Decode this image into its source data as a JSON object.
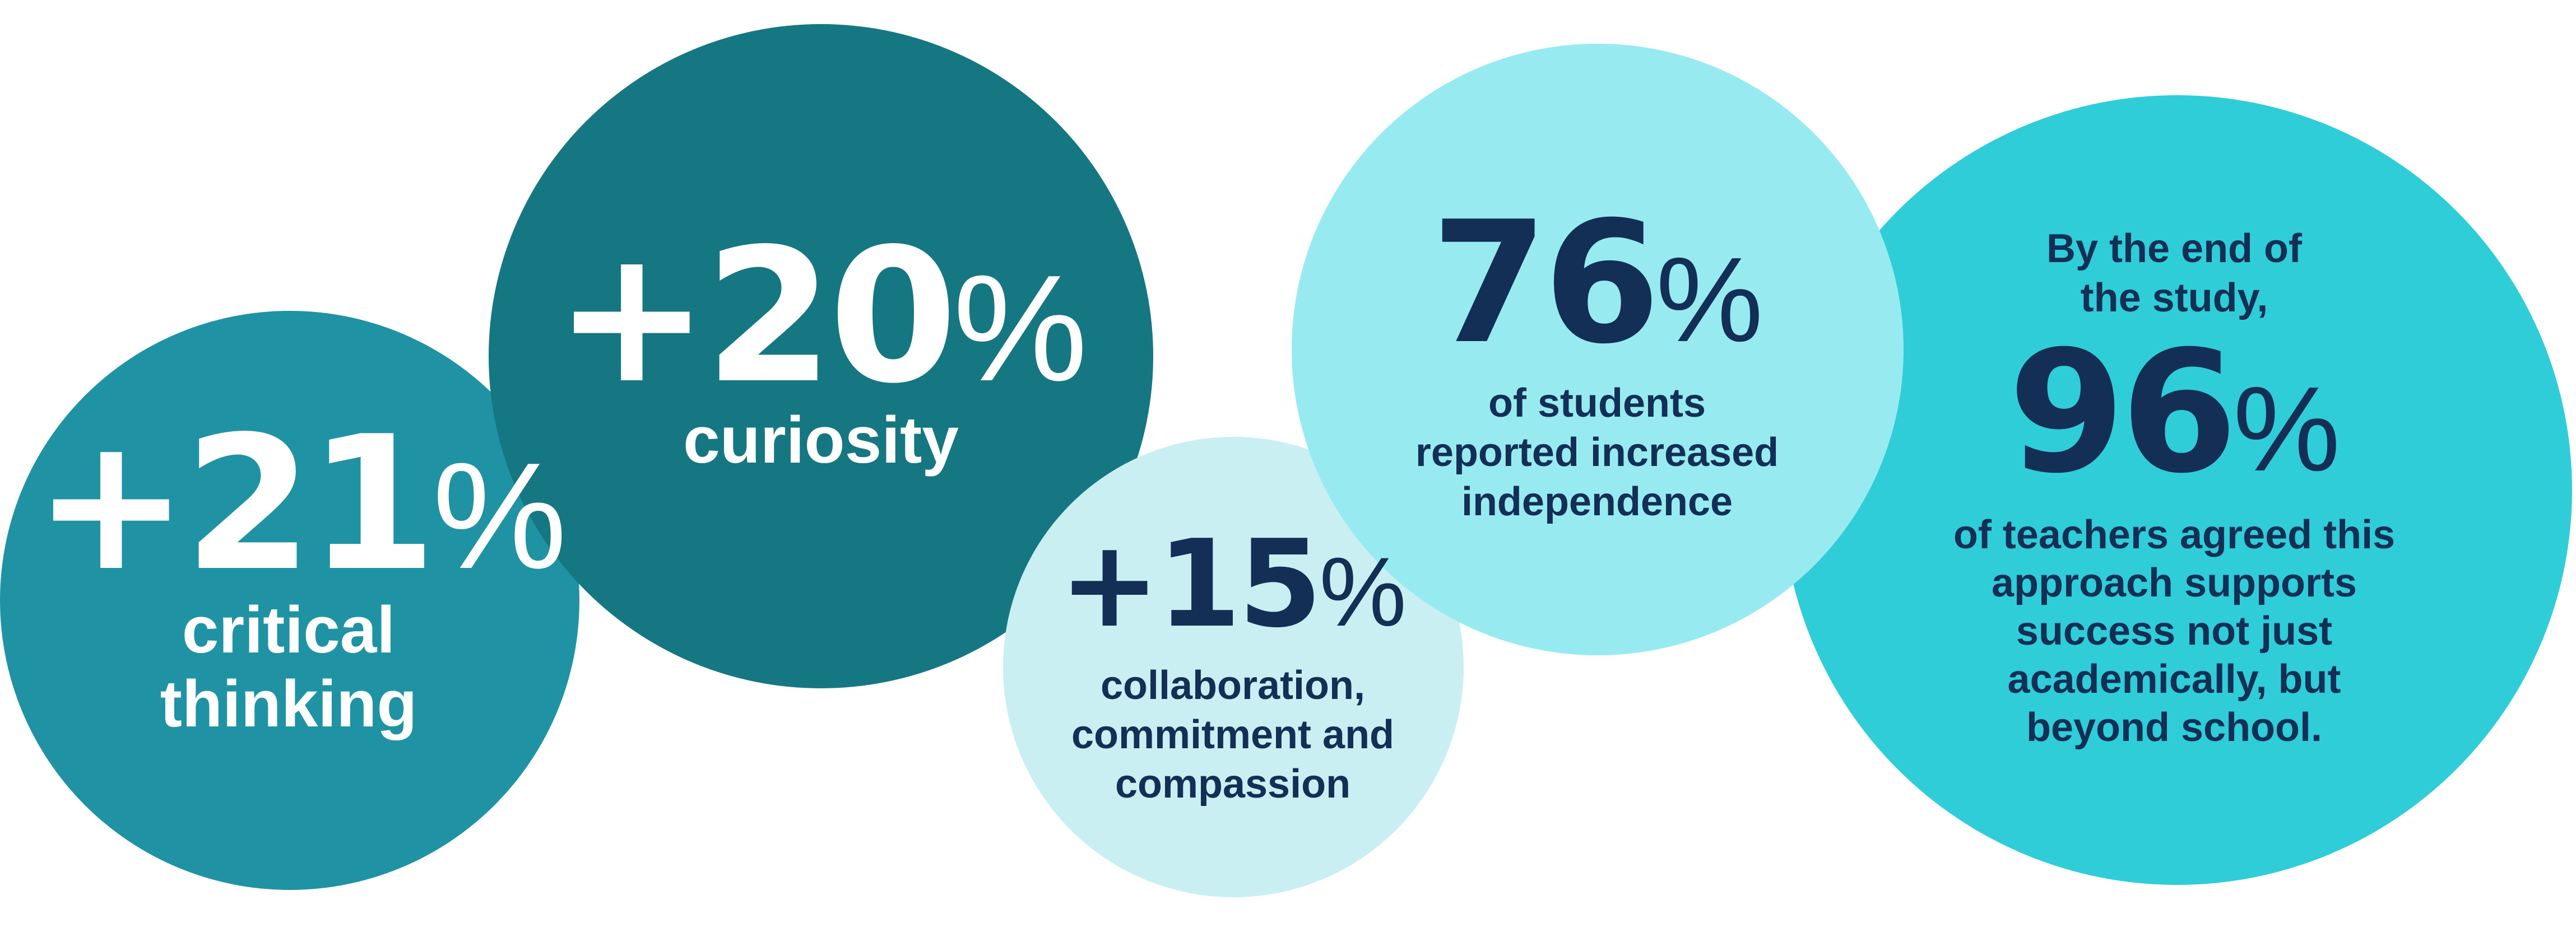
{
  "stats": [
    {
      "id": "critical-thinking",
      "value": "+21",
      "unit": "%",
      "caption_lines": [
        "critical",
        "thinking"
      ]
    },
    {
      "id": "curiosity",
      "value": "+20",
      "unit": "%",
      "caption_lines": [
        "curiosity"
      ]
    },
    {
      "id": "collaboration",
      "value": "+15",
      "unit": "%",
      "caption_lines": [
        "collaboration,",
        "commitment and",
        "compassion"
      ]
    },
    {
      "id": "independence",
      "value": "76",
      "unit": "%",
      "caption_lines": [
        "of students",
        "reported increased",
        "independence"
      ]
    },
    {
      "id": "teachers",
      "intro_lines": [
        "By the end of",
        "the study,"
      ],
      "value": "96",
      "unit": "%",
      "caption_lines": [
        "of teachers agreed this",
        "approach supports",
        "success not just",
        "academically, but",
        "beyond school."
      ]
    }
  ],
  "colors": {
    "teal_dark": "#157782",
    "teal_mid": "#1f93a3",
    "pale_aqua": "#c9eff3",
    "light_aqua": "#97ebf0",
    "cyan": "#2fcdd8",
    "navy_text": "#132f55",
    "white_text": "#ffffff"
  }
}
